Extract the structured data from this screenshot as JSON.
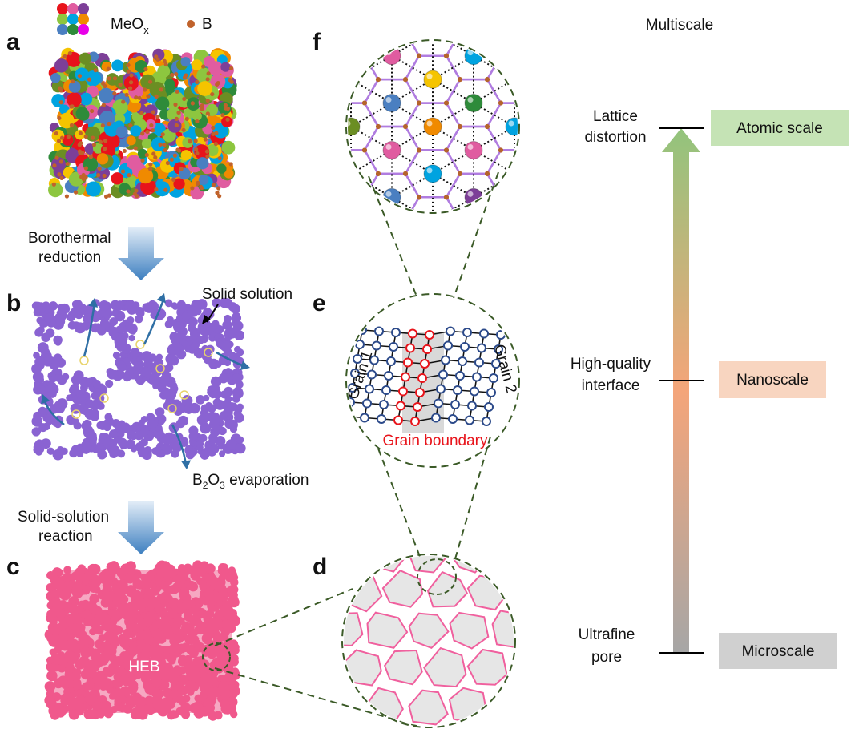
{
  "panel_labels": [
    "a",
    "b",
    "c",
    "d",
    "e",
    "f"
  ],
  "legend": {
    "oxide": {
      "base": "MeO",
      "sub": "x"
    },
    "boron": "B"
  },
  "steps": [
    {
      "lines": [
        "Borothermal",
        "reduction"
      ]
    },
    {
      "lines": [
        "Solid-solution",
        "reaction"
      ]
    }
  ],
  "annotations": {
    "solid_solution": "Solid solution",
    "evaporation": [
      "B",
      "2",
      "O",
      "3",
      " evaporation"
    ],
    "product": "HEB"
  },
  "grain": {
    "left": "Grain 1",
    "right": "Grain 2",
    "boundary": "Grain boundary"
  },
  "scale": {
    "title": "Multiscale",
    "levels": [
      {
        "feature": [
          "Lattice",
          "distortion"
        ],
        "scale": "Atomic scale"
      },
      {
        "feature": [
          "High-quality",
          "interface"
        ],
        "scale": "Nanoscale"
      },
      {
        "feature": [
          "Ultrafine",
          "pore"
        ],
        "scale": "Microscale"
      }
    ]
  }
}
